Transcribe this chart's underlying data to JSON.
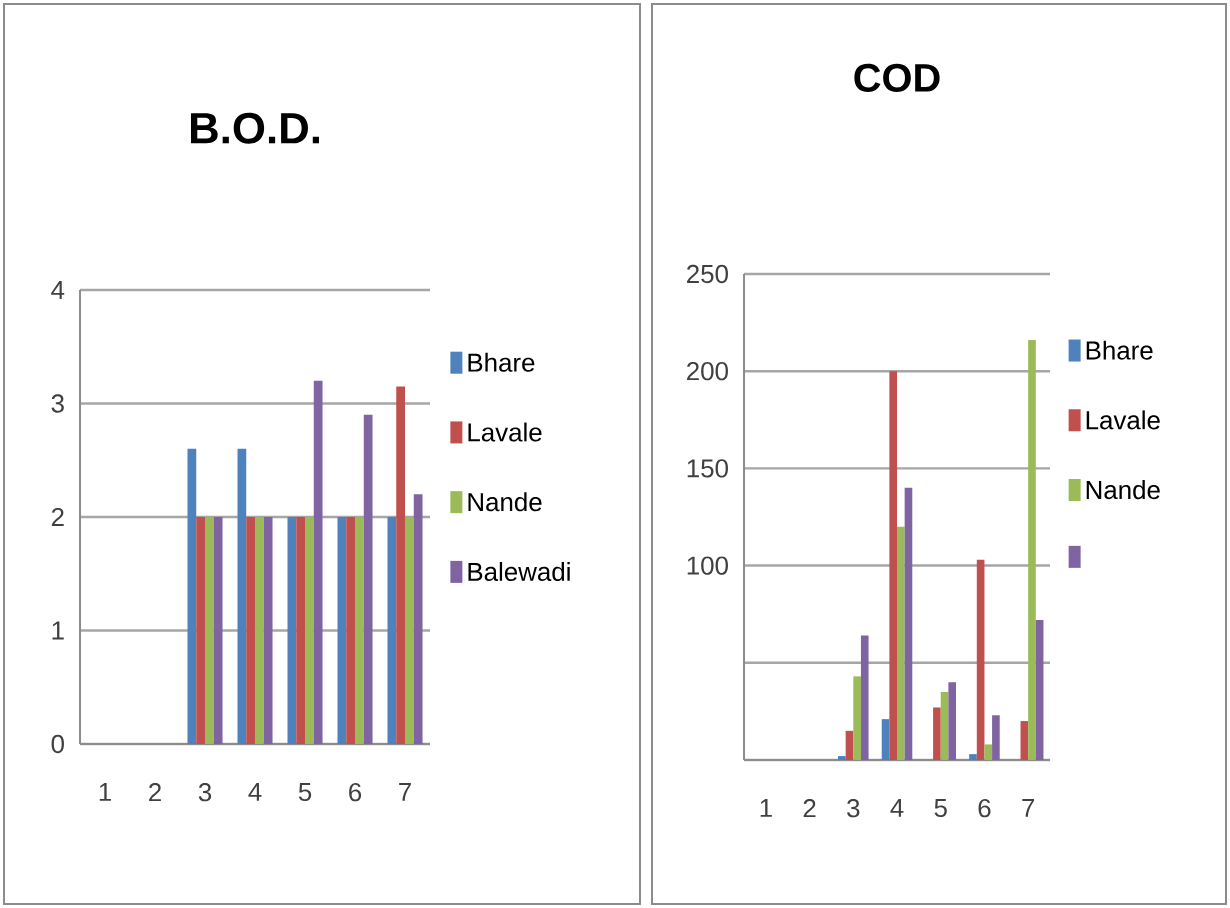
{
  "chart_data": [
    {
      "type": "bar",
      "title": "B.O.D.",
      "categories": [
        "1",
        "2",
        "3",
        "4",
        "5",
        "6",
        "7"
      ],
      "series": [
        {
          "name": "Bhare",
          "color": "#4f81bd",
          "values": [
            null,
            null,
            2.6,
            2.6,
            2,
            2,
            2
          ]
        },
        {
          "name": "Lavale",
          "color": "#c0504d",
          "values": [
            null,
            null,
            2,
            2,
            2,
            2,
            3.15
          ]
        },
        {
          "name": "Nande",
          "color": "#9bbb59",
          "values": [
            null,
            null,
            2,
            2,
            2,
            2,
            2
          ]
        },
        {
          "name": "Balewadi",
          "color": "#8064a2",
          "values": [
            null,
            null,
            2,
            2,
            3.2,
            2.9,
            2.2
          ]
        }
      ],
      "ylim": [
        0,
        4
      ],
      "yticks": [
        0,
        1,
        2,
        3,
        4
      ],
      "grid": "y",
      "legend": "right"
    },
    {
      "type": "bar",
      "title": "COD",
      "categories": [
        "1",
        "2",
        "3",
        "4",
        "5",
        "6",
        "7"
      ],
      "series": [
        {
          "name": "Bhare",
          "color": "#4f81bd",
          "values": [
            null,
            null,
            2,
            21,
            null,
            3,
            null
          ]
        },
        {
          "name": "Lavale",
          "color": "#c0504d",
          "values": [
            null,
            null,
            15,
            200,
            27,
            103,
            20
          ]
        },
        {
          "name": "Nande",
          "color": "#9bbb59",
          "values": [
            null,
            null,
            43,
            120,
            35,
            8,
            216
          ]
        },
        {
          "color": "#8064a2",
          "values": [
            null,
            null,
            64,
            140,
            40,
            23,
            72
          ]
        }
      ],
      "ylim": [
        0,
        250
      ],
      "yticks": [
        {
          "value": 0,
          "label": null
        },
        {
          "value": 50,
          "label": null
        },
        100,
        150,
        200,
        250
      ],
      "grid": "y",
      "legend": "right"
    }
  ]
}
